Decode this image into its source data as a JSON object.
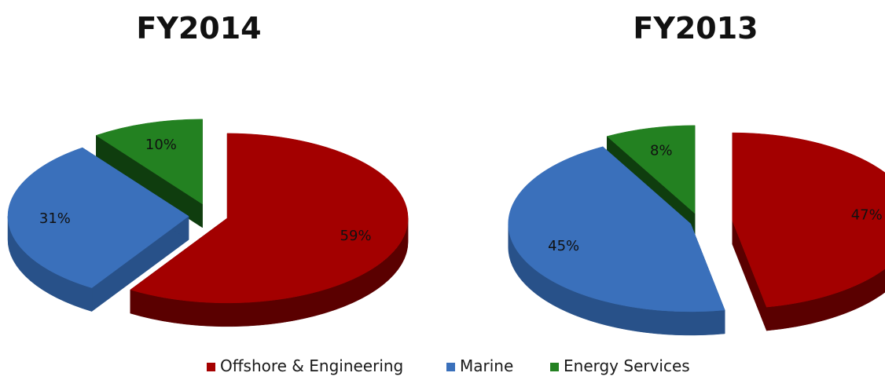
{
  "chart_data": [
    {
      "type": "pie",
      "title": "FY2014",
      "slices": [
        {
          "series": "Offshore & Engineering",
          "value": 59,
          "label": "59%"
        },
        {
          "series": "Marine",
          "value": 31,
          "label": "31%"
        },
        {
          "series": "Energy Services",
          "value": 10,
          "label": "10%"
        }
      ]
    },
    {
      "type": "pie",
      "title": "FY2013",
      "slices": [
        {
          "series": "Offshore & Engineering",
          "value": 47,
          "label": "47%"
        },
        {
          "series": "Marine",
          "value": 45,
          "label": "45%"
        },
        {
          "series": "Energy Services",
          "value": 8,
          "label": "8%"
        }
      ]
    }
  ],
  "legend": {
    "placement": "bottom-center",
    "items": [
      {
        "name": "Offshore & Engineering",
        "color": "#a50000"
      },
      {
        "name": "Marine",
        "color": "#3a70bb"
      },
      {
        "name": "Energy Services",
        "color": "#238121"
      }
    ]
  },
  "colors": {
    "Offshore & Engineering": {
      "top": "#a30000",
      "side": "#5a0000"
    },
    "Marine": {
      "top": "#3a70bb",
      "side": "#285189"
    },
    "Energy Services": {
      "top": "#238121",
      "side": "#0f3d0e"
    }
  }
}
